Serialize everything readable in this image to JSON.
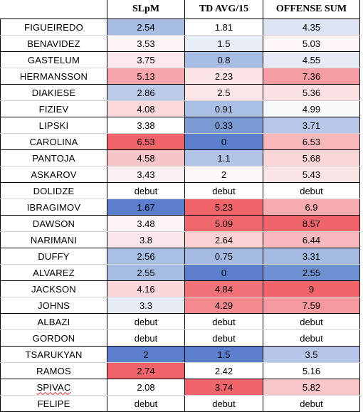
{
  "headers": [
    "",
    "SLpM",
    "TD AVG/15",
    "OFFENSE SUM"
  ],
  "rows": [
    {
      "name": "FIGUEIREDO",
      "slpm": "2.54",
      "td": "1.81",
      "sum": "4.35",
      "colors": [
        "#a8bde3",
        "#ffffff",
        "#dde4f3"
      ]
    },
    {
      "name": "BENAVIDEZ",
      "slpm": "3.53",
      "td": "1.5",
      "sum": "5.03",
      "colors": [
        "#fcf4f5",
        "#e9edf7",
        "#fdf5f6"
      ]
    },
    {
      "name": "GASTELUM",
      "slpm": "3.75",
      "td": "0.8",
      "sum": "4.55",
      "colors": [
        "#fbe9eb",
        "#a8bde3",
        "#e6ebf6"
      ]
    },
    {
      "name": "HERMANSSON",
      "slpm": "5.13",
      "td": "2.23",
      "sum": "7.36",
      "colors": [
        "#f6a6ab",
        "#fde5e7",
        "#f49ea3"
      ]
    },
    {
      "name": "DIAKIESE",
      "slpm": "2.86",
      "td": "2.5",
      "sum": "5.36",
      "colors": [
        "#bccbe9",
        "#fde6e8",
        "#fbe1e3"
      ]
    },
    {
      "name": "FIZIEV",
      "slpm": "4.08",
      "td": "0.91",
      "sum": "4.99",
      "colors": [
        "#fad9dc",
        "#aabfe4",
        "#f9fafd"
      ]
    },
    {
      "name": "LIPSKI",
      "slpm": "3.38",
      "td": "0.33",
      "sum": "3.71",
      "colors": [
        "#ffffff",
        "#7b9bd5",
        "#b9c8e9"
      ]
    },
    {
      "name": "CAROLINA",
      "slpm": "6.53",
      "td": "0",
      "sum": "6.53",
      "colors": [
        "#f0646a",
        "#5b7fcc",
        "#f7b8bc"
      ]
    },
    {
      "name": "PANTOJA",
      "slpm": "4.58",
      "td": "1.1",
      "sum": "5.68",
      "colors": [
        "#f7c4c8",
        "#b1c4e6",
        "#fbd6d9"
      ]
    },
    {
      "name": "ASKAROV",
      "slpm": "3.43",
      "td": "2",
      "sum": "5.43",
      "colors": [
        "#fbf0f1",
        "#fef8f9",
        "#fbe4e6"
      ]
    },
    {
      "name": "DOLIDZE",
      "slpm": "debut",
      "td": "debut",
      "sum": "debut",
      "colors": [
        "#ffffff",
        "#ffffff",
        "#ffffff"
      ]
    },
    {
      "name": "IBRAGIMOV",
      "slpm": "1.67",
      "td": "5.23",
      "sum": "6.9",
      "colors": [
        "#5b7fcc",
        "#f0646a",
        "#f6abb0"
      ]
    },
    {
      "name": "DAWSON",
      "slpm": "3.48",
      "td": "5.09",
      "sum": "8.57",
      "colors": [
        "#fbf3f4",
        "#f0686e",
        "#f0656b"
      ]
    },
    {
      "name": "NARIMANI",
      "slpm": "3.8",
      "td": "2.64",
      "sum": "6.44",
      "colors": [
        "#fbe7e9",
        "#fbd1d4",
        "#f7b9bd"
      ]
    },
    {
      "name": "DUFFY",
      "slpm": "2.56",
      "td": "0.75",
      "sum": "3.31",
      "colors": [
        "#a9bee3",
        "#a4bae2",
        "#a4bae2"
      ]
    },
    {
      "name": "ALVAREZ",
      "slpm": "2.55",
      "td": "0",
      "sum": "2.55",
      "colors": [
        "#a7bde3",
        "#5b7fcc",
        "#6f91d1"
      ]
    },
    {
      "name": "JACKSON",
      "slpm": "4.16",
      "td": "4.84",
      "sum": "9",
      "colors": [
        "#fad7da",
        "#f07278",
        "#f0646a"
      ]
    },
    {
      "name": "JOHNS",
      "slpm": "3.3",
      "td": "4.29",
      "sum": "7.59",
      "colors": [
        "#e8ecf7",
        "#f28a90",
        "#f4999e"
      ]
    },
    {
      "name": "ALBAZI",
      "slpm": "debut",
      "td": "debut",
      "sum": "debut",
      "colors": [
        "#ffffff",
        "#ffffff",
        "#ffffff"
      ]
    },
    {
      "name": "GORDON",
      "slpm": "debut",
      "td": "debut",
      "sum": "debut",
      "colors": [
        "#ffffff",
        "#ffffff",
        "#ffffff"
      ]
    },
    {
      "name": "TSARUKYAN",
      "slpm": "2",
      "td": "1.5",
      "sum": "3.5",
      "colors": [
        "#5b7fcc",
        "#5b7fcc",
        "#b6c6e8"
      ]
    },
    {
      "name": "RAMOS",
      "slpm": "2.74",
      "td": "2.42",
      "sum": "5.16",
      "colors": [
        "#f0646a",
        "#ffffff",
        "#ffffff"
      ]
    },
    {
      "name": "SPIVAC",
      "slpm": "2.08",
      "td": "3.74",
      "sum": "5.82",
      "colors": [
        "#ffffff",
        "#f0646a",
        "#f8c5c8"
      ]
    },
    {
      "name": "FELIPE",
      "slpm": "debut",
      "td": "debut",
      "sum": "debut",
      "colors": [
        "#ffffff",
        "#ffffff",
        "#ffffff"
      ]
    }
  ]
}
